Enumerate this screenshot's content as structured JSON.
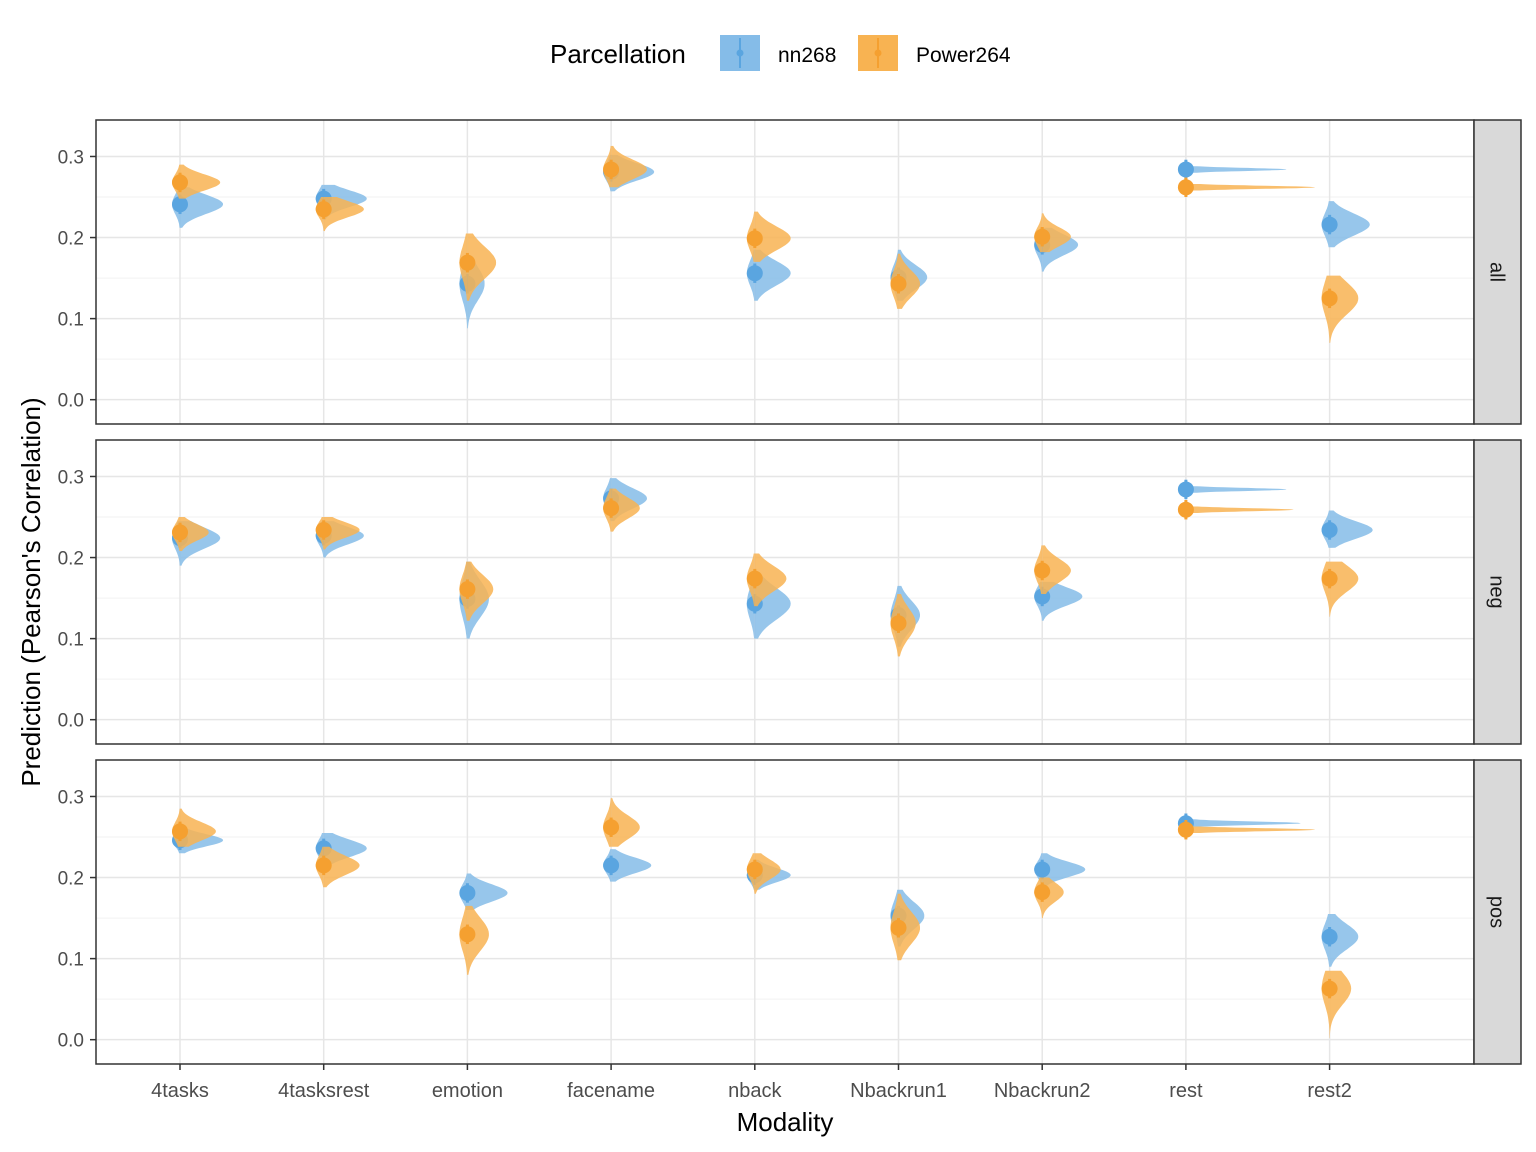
{
  "chart_data": {
    "type": "violin",
    "xlabel": "Modality",
    "ylabel": "Prediction (Pearson's Correlation)",
    "categories": [
      "4tasks",
      "4tasksrest",
      "emotion",
      "facename",
      "nback",
      "Nbackrun1",
      "Nbackrun2",
      "rest",
      "rest2"
    ],
    "facets": [
      "all",
      "neg",
      "pos"
    ],
    "ylim": [
      -0.03,
      0.345
    ],
    "yticks": [
      0.0,
      0.1,
      0.2,
      0.3
    ],
    "ytick_labels": [
      "0.0",
      "0.1",
      "0.2",
      "0.3"
    ],
    "grid": true,
    "legend": {
      "title": "Parcellation",
      "position": "top",
      "items": [
        "nn268",
        "Power264"
      ]
    },
    "series": [
      {
        "name": "nn268",
        "color": "#5aa5e0",
        "fill": "#85bce8",
        "facets": {
          "all": {
            "means": [
              0.241,
              0.248,
              0.143,
              0.281,
              0.156,
              0.151,
              0.191,
              0.284,
              0.216
            ],
            "min": [
              0.212,
              0.222,
              0.088,
              0.257,
              0.122,
              0.122,
              0.158,
              0.28,
              0.188
            ],
            "max": [
              0.262,
              0.265,
              0.175,
              0.302,
              0.185,
              0.185,
              0.212,
              0.288,
              0.245
            ],
            "width": [
              0.3,
              0.3,
              0.12,
              0.3,
              0.25,
              0.2,
              0.25,
              0.7,
              0.28
            ]
          },
          "neg": {
            "means": [
              0.224,
              0.227,
              0.149,
              0.273,
              0.143,
              0.129,
              0.152,
              0.284,
              0.234
            ],
            "min": [
              0.19,
              0.2,
              0.1,
              0.245,
              0.1,
              0.09,
              0.122,
              0.28,
              0.212
            ],
            "max": [
              0.245,
              0.245,
              0.195,
              0.298,
              0.182,
              0.165,
              0.17,
              0.288,
              0.258
            ],
            "width": [
              0.28,
              0.28,
              0.15,
              0.25,
              0.25,
              0.15,
              0.28,
              0.7,
              0.3
            ]
          },
          "pos": {
            "means": [
              0.246,
              0.236,
              0.181,
              0.215,
              0.203,
              0.153,
              0.21,
              0.267,
              0.127
            ],
            "min": [
              0.23,
              0.21,
              0.16,
              0.195,
              0.185,
              0.115,
              0.19,
              0.263,
              0.09
            ],
            "max": [
              0.262,
              0.255,
              0.205,
              0.235,
              0.222,
              0.185,
              0.23,
              0.272,
              0.155
            ],
            "width": [
              0.3,
              0.3,
              0.28,
              0.28,
              0.25,
              0.18,
              0.3,
              0.8,
              0.2
            ]
          }
        }
      },
      {
        "name": "Power264",
        "color": "#f5a030",
        "fill": "#f8b352",
        "facets": {
          "all": {
            "means": [
              0.268,
              0.235,
              0.169,
              0.284,
              0.199,
              0.143,
              0.201,
              0.262,
              0.125
            ],
            "min": [
              0.248,
              0.208,
              0.122,
              0.262,
              0.17,
              0.112,
              0.182,
              0.258,
              0.07
            ],
            "max": [
              0.29,
              0.25,
              0.205,
              0.313,
              0.232,
              0.18,
              0.23,
              0.266,
              0.153
            ],
            "width": [
              0.28,
              0.28,
              0.2,
              0.25,
              0.25,
              0.15,
              0.2,
              0.9,
              0.2
            ]
          },
          "neg": {
            "means": [
              0.231,
              0.234,
              0.161,
              0.261,
              0.174,
              0.119,
              0.184,
              0.259,
              0.174
            ],
            "min": [
              0.208,
              0.21,
              0.122,
              0.232,
              0.14,
              0.078,
              0.155,
              0.255,
              0.127
            ],
            "max": [
              0.25,
              0.25,
              0.195,
              0.285,
              0.205,
              0.155,
              0.215,
              0.263,
              0.195
            ],
            "width": [
              0.2,
              0.25,
              0.18,
              0.2,
              0.22,
              0.12,
              0.2,
              0.75,
              0.2
            ]
          },
          "pos": {
            "means": [
              0.257,
              0.215,
              0.13,
              0.262,
              0.21,
              0.138,
              0.182,
              0.259,
              0.063
            ],
            "min": [
              0.238,
              0.188,
              0.08,
              0.238,
              0.18,
              0.098,
              0.15,
              0.255,
              0.002
            ],
            "max": [
              0.285,
              0.238,
              0.165,
              0.298,
              0.23,
              0.18,
              0.2,
              0.263,
              0.085
            ],
            "width": [
              0.25,
              0.25,
              0.15,
              0.2,
              0.18,
              0.15,
              0.15,
              0.9,
              0.15
            ]
          }
        }
      }
    ]
  }
}
